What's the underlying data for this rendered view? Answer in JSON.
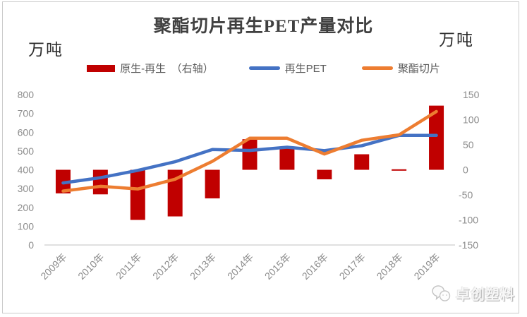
{
  "meta": {
    "title": "聚酯切片再生PET产量对比",
    "left_unit_label": "万吨",
    "right_unit_label": "万吨"
  },
  "legend": {
    "items": [
      {
        "label": "原生-再生　（右轴）",
        "type": "bar",
        "color": "#C00000"
      },
      {
        "label": "再生PET",
        "type": "line",
        "color": "#4472C4"
      },
      {
        "label": "聚酯切片",
        "type": "line",
        "color": "#ED7D31"
      }
    ]
  },
  "chart_data": {
    "type": "combo",
    "title": "聚酯切片再生PET产量对比",
    "categories": [
      "2009年",
      "2010年",
      "2011年",
      "2012年",
      "2013年",
      "2014年",
      "2015年",
      "2016年",
      "2017年",
      "2018年",
      "2019年"
    ],
    "series": [
      {
        "name": "原生-再生　（右轴）",
        "type": "bar",
        "axis": "right",
        "color": "#C00000",
        "values": [
          -47,
          -49,
          -100,
          -93,
          -57,
          61,
          43,
          -19,
          31,
          1,
          128
        ]
      },
      {
        "name": "再生PET",
        "type": "line",
        "axis": "left",
        "color": "#4472C4",
        "values": [
          330,
          358,
          397,
          443,
          508,
          503,
          520,
          502,
          528,
          583,
          583
        ]
      },
      {
        "name": "聚酯切片",
        "type": "line",
        "axis": "left",
        "color": "#ED7D31",
        "values": [
          287,
          312,
          298,
          350,
          445,
          568,
          568,
          484,
          557,
          586,
          710
        ]
      }
    ],
    "left_axis": {
      "unit": "万吨",
      "min": 0,
      "max": 800,
      "step": 100,
      "ticks": [
        800,
        700,
        600,
        500,
        400,
        300,
        200,
        100,
        0
      ]
    },
    "right_axis": {
      "unit": "万吨",
      "min": -150,
      "max": 150,
      "step": 50,
      "ticks": [
        150,
        100,
        50,
        0,
        -50,
        -100,
        -150
      ]
    },
    "grid": false,
    "legend_position": "top",
    "axis_line_color": "#d6d6d6"
  },
  "footer": {
    "brand_label": "卓创塑料",
    "brand_icon": "chat-bubbles-icon"
  }
}
